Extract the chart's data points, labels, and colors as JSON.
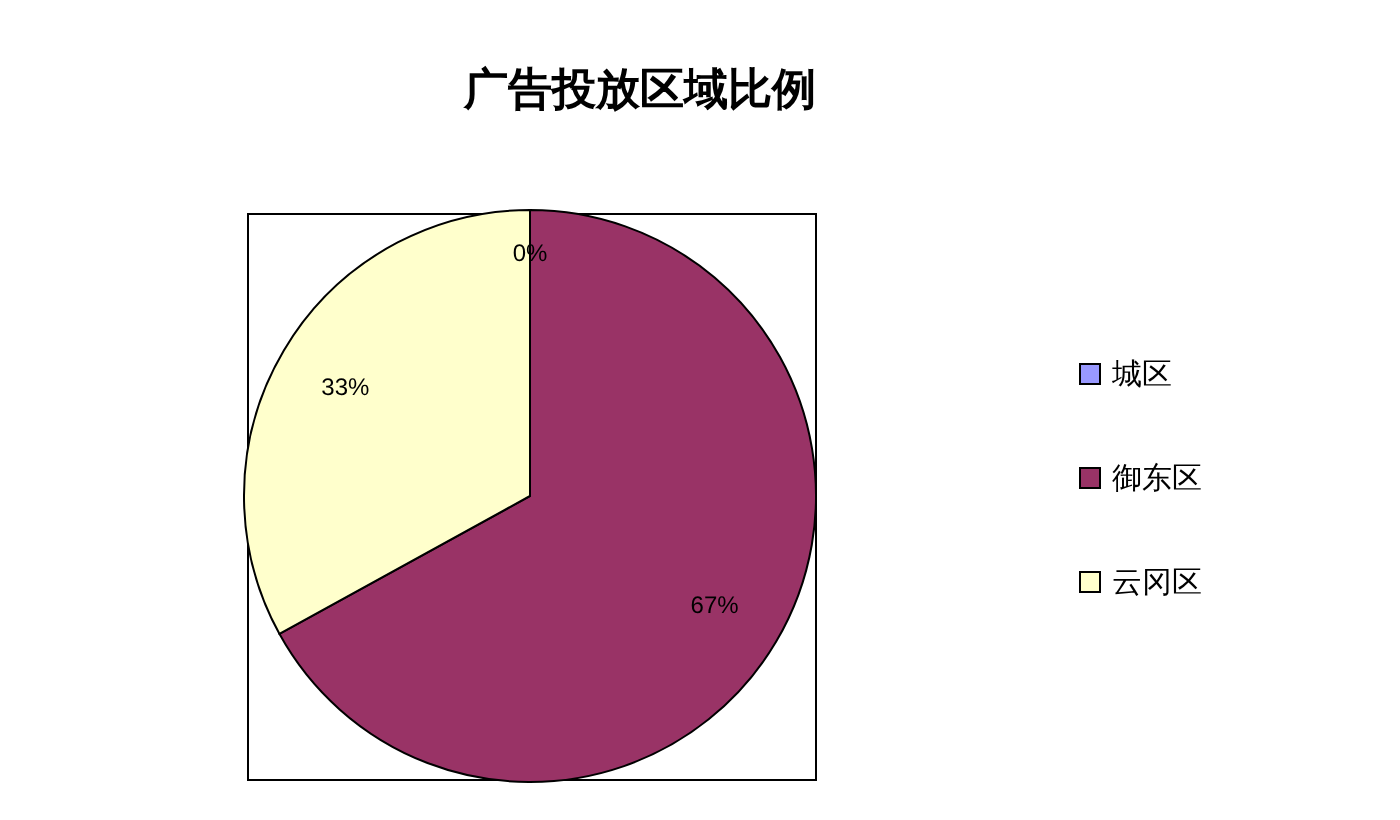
{
  "chart_data": {
    "type": "pie",
    "title": "广告投放区域比例",
    "categories": [
      "城区",
      "御东区",
      "云冈区"
    ],
    "values": [
      0,
      67,
      33
    ],
    "colors": [
      "#9999ff",
      "#993366",
      "#ffffcc"
    ],
    "value_labels": [
      "0%",
      "67%",
      "33%"
    ],
    "legend": "right"
  }
}
